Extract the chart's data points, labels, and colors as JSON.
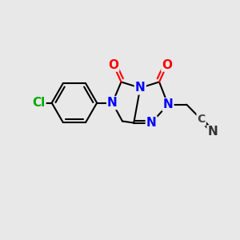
{
  "bg_color": "#e8e8e8",
  "bond_color": "#000000",
  "bond_width": 1.5,
  "atom_colors": {
    "N": "#0000ff",
    "O": "#ff0000",
    "Cl": "#00aa00",
    "C_nitrile": "#444444"
  },
  "font_size_atom": 11,
  "figsize": [
    3.0,
    3.0
  ],
  "dpi": 100
}
